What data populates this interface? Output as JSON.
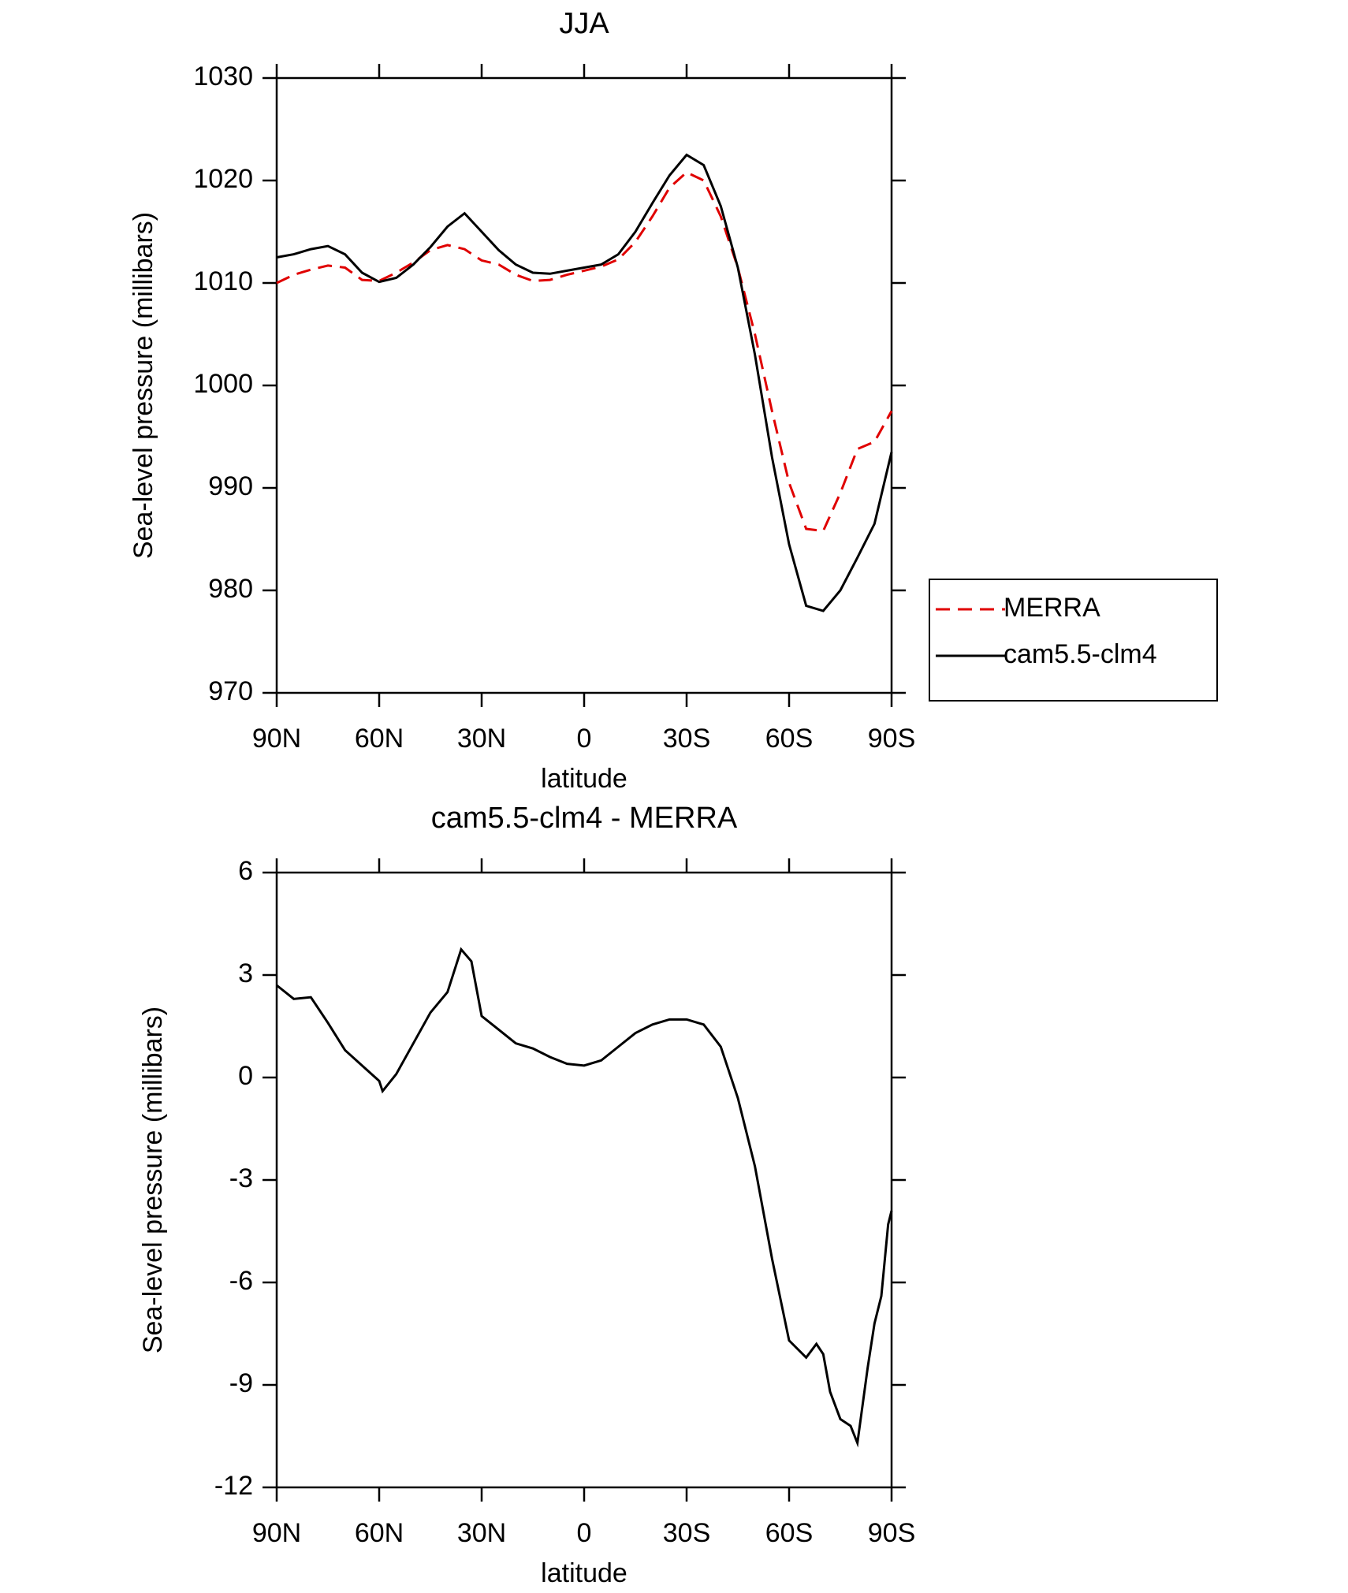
{
  "chart_data": [
    {
      "type": "line",
      "title": "JJA",
      "xlabel": "latitude",
      "ylabel": "Sea-level pressure (millibars)",
      "x": [
        90,
        85,
        80,
        75,
        70,
        65,
        60,
        55,
        50,
        45,
        40,
        35,
        30,
        25,
        20,
        15,
        10,
        5,
        0,
        -5,
        -10,
        -15,
        -20,
        -25,
        -30,
        -35,
        -40,
        -45,
        -50,
        -55,
        -60,
        -65,
        -70,
        -75,
        -80,
        -85,
        -90
      ],
      "series": [
        {
          "name": "MERRA",
          "color": "#e00000",
          "line_style": "dashed",
          "values": [
            1010,
            1010.8,
            1011.3,
            1011.7,
            1011.5,
            1010.3,
            1010.2,
            1011,
            1012,
            1013.2,
            1013.7,
            1013.3,
            1012.2,
            1011.8,
            1010.8,
            1010.2,
            1010.3,
            1010.8,
            1011.2,
            1011.6,
            1012.3,
            1014,
            1016.5,
            1019.3,
            1020.8,
            1020,
            1016.5,
            1011.5,
            1005,
            997.5,
            990.5,
            986,
            985.8,
            989.5,
            993.8,
            994.5,
            997.5
          ]
        },
        {
          "name": "cam5.5-clm4",
          "color": "#000000",
          "line_style": "solid",
          "values": [
            1012.5,
            1012.8,
            1013.3,
            1013.6,
            1012.8,
            1011,
            1010.1,
            1010.5,
            1011.8,
            1013.5,
            1015.5,
            1016.8,
            1015,
            1013.2,
            1011.8,
            1011,
            1010.9,
            1011.2,
            1011.5,
            1011.8,
            1012.8,
            1015,
            1017.8,
            1020.5,
            1022.5,
            1021.5,
            1017.5,
            1011.5,
            1003,
            993,
            984.5,
            978.5,
            978,
            980,
            983.2,
            986.5,
            993.5
          ]
        }
      ],
      "xlim": [
        90,
        -90
      ],
      "xticks": [
        {
          "value": 90,
          "label": "90N"
        },
        {
          "value": 60,
          "label": "60N"
        },
        {
          "value": 30,
          "label": "30N"
        },
        0,
        {
          "value": -30,
          "label": "30S"
        },
        {
          "value": -60,
          "label": "60S"
        },
        {
          "value": -90,
          "label": "90S"
        }
      ],
      "ylim": [
        970,
        1030
      ],
      "yticks": [
        970,
        980,
        990,
        1000,
        1010,
        1020,
        1030
      ],
      "grid": false,
      "legend": "outside-right"
    },
    {
      "type": "line",
      "title": "cam5.5-clm4 - MERRA",
      "xlabel": "latitude",
      "ylabel": "Sea-level pressure (millibars)",
      "x": [
        90,
        85,
        80,
        75,
        70,
        65,
        60,
        59,
        55,
        50,
        45,
        40,
        36,
        33,
        30,
        25,
        20,
        15,
        10,
        5,
        0,
        -5,
        -10,
        -15,
        -20,
        -25,
        -30,
        -35,
        -40,
        -45,
        -50,
        -55,
        -60,
        -65,
        -68,
        -70,
        -72,
        -75,
        -78,
        -80,
        -83,
        -85,
        -87,
        -89,
        -90
      ],
      "values": [
        2.7,
        2.3,
        2.35,
        1.6,
        0.8,
        0.35,
        -0.1,
        -0.4,
        0.1,
        1,
        1.9,
        2.5,
        3.75,
        3.4,
        1.8,
        1.4,
        1.0,
        0.85,
        0.6,
        0.4,
        0.35,
        0.5,
        0.9,
        1.3,
        1.55,
        1.7,
        1.7,
        1.55,
        0.9,
        -0.6,
        -2.6,
        -5.3,
        -7.7,
        -8.2,
        -7.8,
        -8.1,
        -9.2,
        -10,
        -10.2,
        -10.7,
        -8.5,
        -7.2,
        -6.4,
        -4.3,
        -3.9
      ],
      "color": "#000000",
      "line_style": "solid",
      "xlim": [
        90,
        -90
      ],
      "xticks": [
        {
          "value": 90,
          "label": "90N"
        },
        {
          "value": 60,
          "label": "60N"
        },
        {
          "value": 30,
          "label": "30N"
        },
        0,
        {
          "value": -30,
          "label": "30S"
        },
        {
          "value": -60,
          "label": "60S"
        },
        {
          "value": -90,
          "label": "90S"
        }
      ],
      "ylim": [
        -12,
        6
      ],
      "yticks": [
        -12,
        -9,
        -6,
        -3,
        0,
        3,
        6
      ],
      "grid": false
    }
  ]
}
